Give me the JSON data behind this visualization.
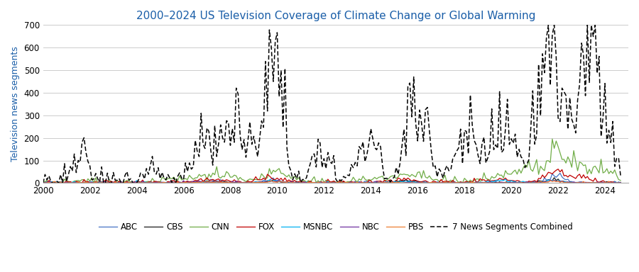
{
  "title": "2000–2024 US Television Coverage of Climate Change or Global Warming",
  "ylabel": "Television news segments",
  "title_color": "#1a5ea8",
  "ylabel_color": "#1a5ea8",
  "background_color": "#ffffff",
  "grid_color": "#cccccc",
  "series_colors": {
    "ABC": "#4472c4",
    "CBS": "#1a1a1a",
    "CNN": "#70ad47",
    "FOX": "#c00000",
    "MSNBC": "#00b0f0",
    "NBC": "#7030a0",
    "PBS": "#ed7d31",
    "Combined": "#000000"
  },
  "ylim": [
    0,
    700
  ],
  "yticks": [
    0,
    100,
    200,
    300,
    400,
    500,
    600,
    700
  ],
  "xlim_start": 2000.0,
  "xlim_end": 2025.0,
  "xticks": [
    2000,
    2002,
    2004,
    2006,
    2008,
    2010,
    2012,
    2014,
    2016,
    2018,
    2020,
    2022,
    2024
  ],
  "figsize": [
    9.0,
    3.84
  ],
  "dpi": 100
}
